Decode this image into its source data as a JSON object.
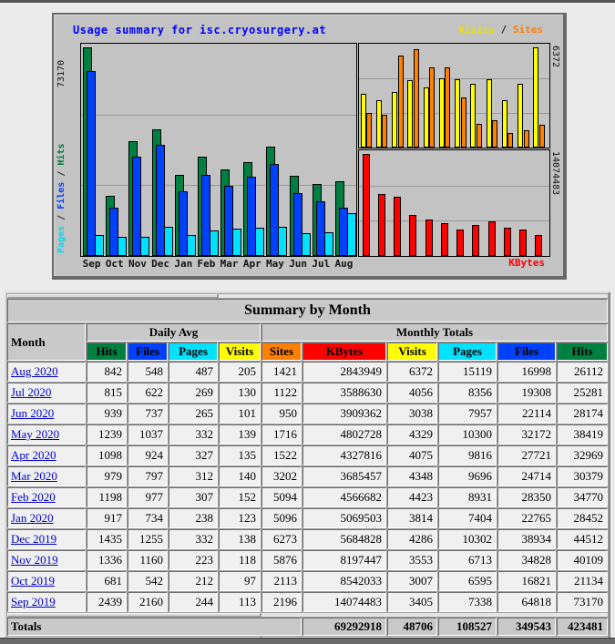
{
  "chart": {
    "title": "Usage summary for isc.cryosurgery.at",
    "legend": {
      "visits": "Visits",
      "sep": "/",
      "sites": "Sites"
    },
    "left_axis_max": "73170",
    "left_label": {
      "pages": "Pages",
      "sep1": "/",
      "files": "Files",
      "sep2": "/",
      "hits": "Hits"
    },
    "right_axis_top": "6372",
    "right_axis_bottom": "14074483",
    "kbytes_label": "KBytes",
    "colors": {
      "hits": "#008040",
      "files": "#0040ff",
      "pages": "#00e0ff",
      "visits": "#ffff00",
      "sites": "#ff8000",
      "kbytes": "#ff0000"
    }
  },
  "chart_data": [
    {
      "type": "bar",
      "title": "Usage summary for isc.cryosurgery.at",
      "categories": [
        "Sep",
        "Oct",
        "Nov",
        "Dec",
        "Jan",
        "Feb",
        "Mar",
        "Apr",
        "May",
        "Jun",
        "Jul",
        "Aug"
      ],
      "series": [
        {
          "name": "Hits",
          "color": "#008040",
          "values": [
            73170,
            21134,
            40109,
            44512,
            28452,
            34770,
            30379,
            32969,
            38419,
            28174,
            25281,
            26112
          ]
        },
        {
          "name": "Files",
          "color": "#0040ff",
          "values": [
            64818,
            16821,
            34828,
            38934,
            22765,
            28350,
            24714,
            27721,
            32172,
            22114,
            19308,
            16998
          ]
        },
        {
          "name": "Pages",
          "color": "#00e0ff",
          "values": [
            7338,
            6595,
            6713,
            10302,
            7404,
            8931,
            9696,
            9816,
            10300,
            7957,
            8356,
            15119
          ]
        }
      ],
      "ylabel": "Pages / Files / Hits",
      "ylim": [
        0,
        73170
      ],
      "grid": "thirds",
      "legend_position": "left-rotated"
    },
    {
      "type": "bar",
      "categories": [
        "Sep",
        "Oct",
        "Nov",
        "Dec",
        "Jan",
        "Feb",
        "Mar",
        "Apr",
        "May",
        "Jun",
        "Jul",
        "Aug"
      ],
      "series": [
        {
          "name": "Visits",
          "color": "#ffff00",
          "values": [
            3405,
            3007,
            3553,
            4286,
            3814,
            4423,
            4348,
            4075,
            4329,
            3038,
            4056,
            6372
          ]
        },
        {
          "name": "Sites",
          "color": "#ff8000",
          "values": [
            2196,
            2113,
            5876,
            6273,
            5096,
            5094,
            3202,
            1522,
            1716,
            950,
            1122,
            1421
          ]
        }
      ],
      "ylim": [
        0,
        6372
      ],
      "grid": "thirds",
      "legend_position": "top-right"
    },
    {
      "type": "bar",
      "categories": [
        "Sep",
        "Oct",
        "Nov",
        "Dec",
        "Jan",
        "Feb",
        "Mar",
        "Apr",
        "May",
        "Jun",
        "Jul",
        "Aug"
      ],
      "series": [
        {
          "name": "KBytes",
          "color": "#ff0000",
          "values": [
            14074483,
            8542033,
            8197447,
            5684828,
            5069503,
            4566682,
            3685457,
            4327816,
            4802728,
            3909362,
            3588630,
            2843949
          ]
        }
      ],
      "ylim": [
        0,
        14074483
      ],
      "grid": "thirds",
      "legend_position": "bottom-right"
    }
  ],
  "table": {
    "title": "Summary by Month",
    "month_header": "Month",
    "group_daily": "Daily Avg",
    "group_monthly": "Monthly Totals",
    "daily_columns": [
      "Hits",
      "Files",
      "Pages",
      "Visits"
    ],
    "monthly_columns": [
      "Sites",
      "KBytes",
      "Visits",
      "Pages",
      "Files",
      "Hits"
    ],
    "rows": [
      {
        "month": "Aug 2020",
        "daily": [
          "842",
          "548",
          "487",
          "205"
        ],
        "monthly": [
          "1421",
          "2843949",
          "6372",
          "15119",
          "16998",
          "26112"
        ]
      },
      {
        "month": "Jul 2020",
        "daily": [
          "815",
          "622",
          "269",
          "130"
        ],
        "monthly": [
          "1122",
          "3588630",
          "4056",
          "8356",
          "19308",
          "25281"
        ]
      },
      {
        "month": "Jun 2020",
        "daily": [
          "939",
          "737",
          "265",
          "101"
        ],
        "monthly": [
          "950",
          "3909362",
          "3038",
          "7957",
          "22114",
          "28174"
        ]
      },
      {
        "month": "May 2020",
        "daily": [
          "1239",
          "1037",
          "332",
          "139"
        ],
        "monthly": [
          "1716",
          "4802728",
          "4329",
          "10300",
          "32172",
          "38419"
        ]
      },
      {
        "month": "Apr 2020",
        "daily": [
          "1098",
          "924",
          "327",
          "135"
        ],
        "monthly": [
          "1522",
          "4327816",
          "4075",
          "9816",
          "27721",
          "32969"
        ]
      },
      {
        "month": "Mar 2020",
        "daily": [
          "979",
          "797",
          "312",
          "140"
        ],
        "monthly": [
          "3202",
          "3685457",
          "4348",
          "9696",
          "24714",
          "30379"
        ]
      },
      {
        "month": "Feb 2020",
        "daily": [
          "1198",
          "977",
          "307",
          "152"
        ],
        "monthly": [
          "5094",
          "4566682",
          "4423",
          "8931",
          "28350",
          "34770"
        ]
      },
      {
        "month": "Jan 2020",
        "daily": [
          "917",
          "734",
          "238",
          "123"
        ],
        "monthly": [
          "5096",
          "5069503",
          "3814",
          "7404",
          "22765",
          "28452"
        ]
      },
      {
        "month": "Dec 2019",
        "daily": [
          "1435",
          "1255",
          "332",
          "138"
        ],
        "monthly": [
          "6273",
          "5684828",
          "4286",
          "10302",
          "38934",
          "44512"
        ]
      },
      {
        "month": "Nov 2019",
        "daily": [
          "1336",
          "1160",
          "223",
          "118"
        ],
        "monthly": [
          "5876",
          "8197447",
          "3553",
          "6713",
          "34828",
          "40109"
        ]
      },
      {
        "month": "Oct 2019",
        "daily": [
          "681",
          "542",
          "212",
          "97"
        ],
        "monthly": [
          "2113",
          "8542033",
          "3007",
          "6595",
          "16821",
          "21134"
        ]
      },
      {
        "month": "Sep 2019",
        "daily": [
          "2439",
          "2160",
          "244",
          "113"
        ],
        "monthly": [
          "2196",
          "14074483",
          "3405",
          "7338",
          "64818",
          "73170"
        ]
      }
    ],
    "totals_label": "Totals",
    "totals": [
      "69292918",
      "48706",
      "108527",
      "349543",
      "423481"
    ]
  }
}
